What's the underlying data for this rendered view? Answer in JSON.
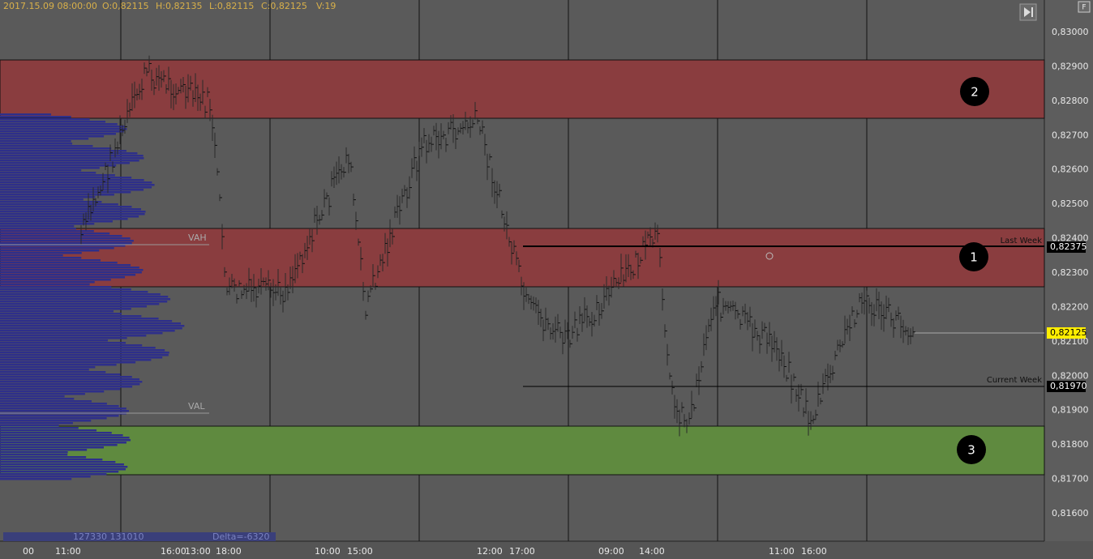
{
  "header": {
    "date": "2017.15.09 08:00:00",
    "open": "O:0,82115",
    "high": "H:0,82135",
    "low": "L:0,82115",
    "close": "C:0,82125",
    "volume": "V:19"
  },
  "price_axis": [
    "0,83000",
    "0,82900",
    "0,82800",
    "0,82700",
    "0,82600",
    "0,82500",
    "0,82400",
    "0,82300",
    "0,82200",
    "0,82100",
    "0,82000",
    "0,81900",
    "0,81800",
    "0,81700",
    "0,81600"
  ],
  "price_markers": {
    "last_week": "0,82375",
    "current": "0,82125",
    "current_week": "0,81970"
  },
  "line_labels": {
    "last_week": "Last Week",
    "current_week": "Current Week"
  },
  "zones": [
    "1",
    "2",
    "3"
  ],
  "profile": {
    "vah": "VAH",
    "val": "VAL",
    "volumes": "127330 131010",
    "delta": "Delta=-6320"
  },
  "time_axis": [
    "00",
    "11:00",
    "16:00",
    "13:00",
    "18:00",
    "10:00",
    "15:00",
    "12:00",
    "17:00",
    "09:00",
    "14:00",
    "11:00",
    "16:00"
  ],
  "corner_button": "F"
}
